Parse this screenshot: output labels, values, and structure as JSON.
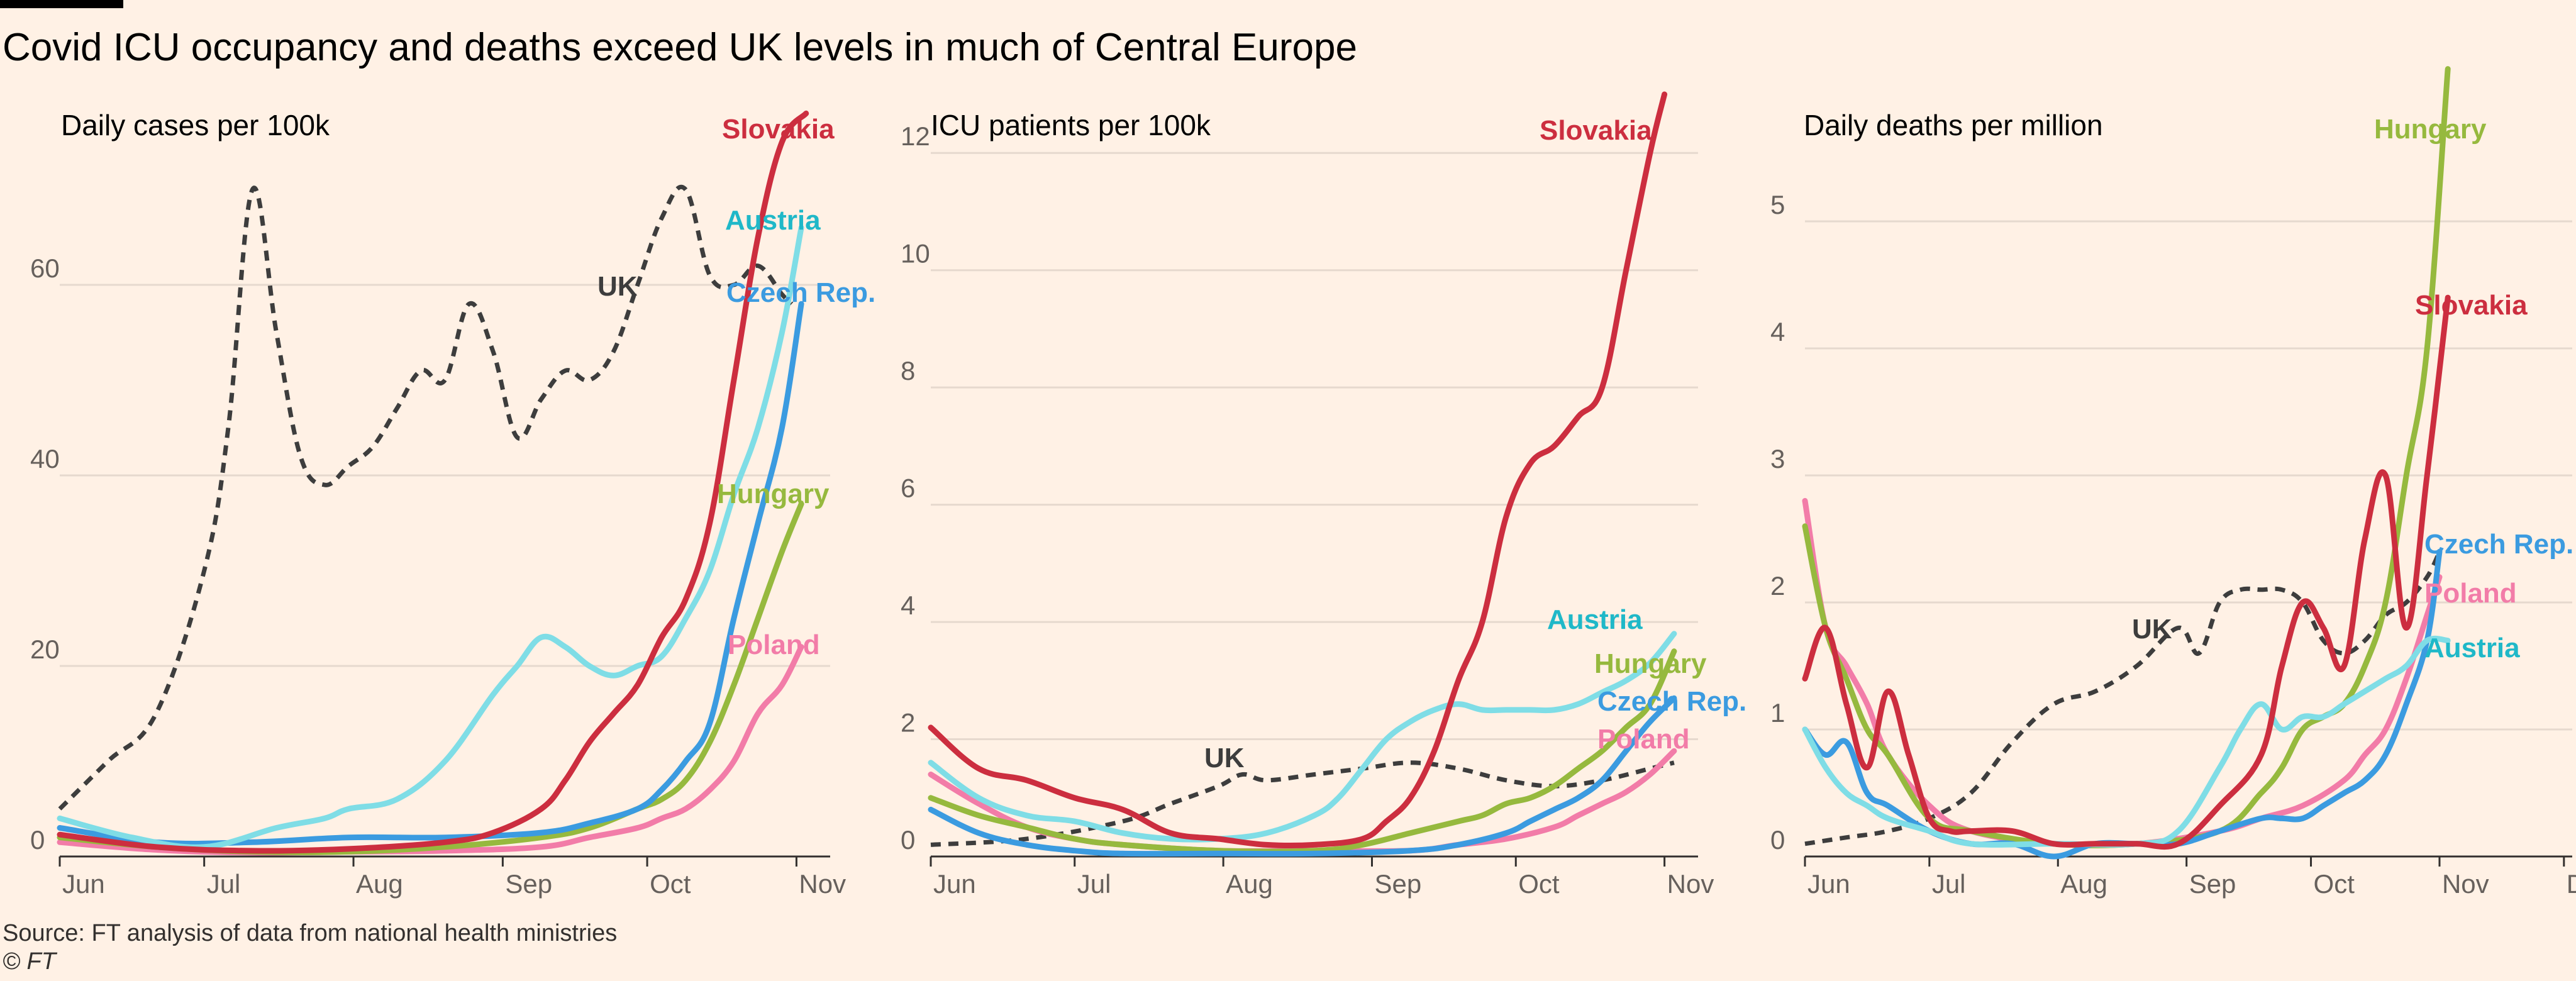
{
  "title": "Covid ICU occupancy and deaths exceed UK levels in much of Central Europe",
  "source": "Source: FT analysis of data from national health ministries",
  "copyright": "© FT",
  "colors": {
    "background": "#fff1e5",
    "grid": "#e6d9ce",
    "axis": "#33302e",
    "tick_text": "#66605c",
    "Slovakia": "#cc2e3f",
    "Austria": "#7fdde6",
    "Austria_label": "#1fb8c8",
    "Czech Rep.": "#3b9be0",
    "Hungary": "#96b93e",
    "Poland": "#f27ca8",
    "UK": "#3d3d3d"
  },
  "chart_data": [
    {
      "type": "line",
      "title": "Daily cases per 100k",
      "xlabel": "",
      "ylabel": "",
      "xlim": [
        0,
        160
      ],
      "ylim": [
        0,
        80
      ],
      "yticks": [
        0,
        20,
        40,
        60
      ],
      "ytick_labels": [
        "0",
        "20",
        "40",
        "60"
      ],
      "xticks": [
        0,
        30,
        61,
        92,
        122,
        153
      ],
      "xtick_labels": [
        "Jun",
        "Jul",
        "Aug",
        "Sep",
        "Oct",
        "Nov"
      ],
      "series": [
        {
          "name": "UK",
          "dashed": true,
          "x": [
            0,
            10,
            20,
            30,
            35,
            40,
            45,
            50,
            55,
            60,
            65,
            70,
            75,
            80,
            85,
            90,
            95,
            100,
            105,
            110,
            115,
            120,
            125,
            130,
            135,
            140,
            145,
            150,
            152
          ],
          "y": [
            5,
            10,
            15,
            30,
            45,
            70,
            55,
            42,
            39,
            41,
            43,
            47,
            51,
            50,
            58,
            53,
            44,
            48,
            51,
            50,
            53,
            60,
            67,
            70,
            61,
            60,
            62,
            59,
            58
          ]
        },
        {
          "name": "Slovakia",
          "x": [
            0,
            20,
            40,
            60,
            80,
            90,
            100,
            105,
            110,
            115,
            120,
            125,
            130,
            135,
            140,
            145,
            150,
            155
          ],
          "y": [
            2.3,
            1,
            0.6,
            0.8,
            1.5,
            2.5,
            5,
            8,
            12,
            15,
            18,
            23,
            27,
            35,
            50,
            65,
            75,
            78
          ]
        },
        {
          "name": "Austria",
          "x": [
            0,
            15,
            30,
            45,
            55,
            60,
            70,
            80,
            90,
            95,
            100,
            105,
            110,
            115,
            120,
            125,
            130,
            135,
            140,
            145,
            150,
            154
          ],
          "y": [
            4,
            2,
            1,
            3,
            4,
            5,
            6,
            10,
            17,
            20,
            23,
            22,
            20,
            19,
            20,
            21,
            25,
            30,
            38,
            45,
            55,
            66
          ]
        },
        {
          "name": "Czech Rep.",
          "x": [
            0,
            20,
            40,
            60,
            80,
            100,
            110,
            120,
            125,
            130,
            135,
            140,
            145,
            150,
            154
          ],
          "y": [
            3,
            1.5,
            1.5,
            2,
            2,
            2.5,
            3.5,
            5,
            7,
            10,
            14,
            25,
            35,
            45,
            58
          ]
        },
        {
          "name": "Hungary",
          "x": [
            0,
            20,
            40,
            60,
            80,
            100,
            110,
            120,
            125,
            130,
            135,
            140,
            145,
            150,
            154
          ],
          "y": [
            2,
            1,
            0.5,
            0.5,
            1,
            2,
            3,
            5,
            6,
            8,
            12,
            18,
            25,
            32,
            37
          ]
        },
        {
          "name": "Poland",
          "x": [
            0,
            20,
            40,
            60,
            80,
            100,
            110,
            120,
            125,
            130,
            135,
            140,
            145,
            150,
            154
          ],
          "y": [
            1.5,
            0.7,
            0.4,
            0.5,
            0.6,
            1,
            2,
            3,
            4,
            5,
            7,
            10,
            15,
            18,
            22
          ]
        }
      ],
      "labels": [
        {
          "text": "Slovakia",
          "series": "Slovakia"
        },
        {
          "text": "Austria",
          "series": "Austria"
        },
        {
          "text": "UK",
          "series": "UK"
        },
        {
          "text": "Czech Rep.",
          "series": "Czech Rep."
        },
        {
          "text": "Hungary",
          "series": "Hungary"
        },
        {
          "text": "Poland",
          "series": "Poland"
        }
      ]
    },
    {
      "type": "line",
      "title": "ICU patients per 100k",
      "xlabel": "",
      "ylabel": "",
      "xlim": [
        0,
        160
      ],
      "ylim": [
        0,
        13
      ],
      "yticks": [
        0,
        2,
        4,
        6,
        8,
        10,
        12
      ],
      "ytick_labels": [
        "0",
        "2",
        "4",
        "6",
        "8",
        "10",
        "12"
      ],
      "xticks": [
        0,
        30,
        61,
        92,
        122,
        153
      ],
      "xtick_labels": [
        "Jun",
        "Jul",
        "Aug",
        "Sep",
        "Oct",
        "Nov"
      ],
      "series": [
        {
          "name": "UK",
          "dashed": true,
          "x": [
            0,
            20,
            40,
            50,
            60,
            65,
            70,
            80,
            90,
            100,
            110,
            120,
            130,
            140,
            150,
            155
          ],
          "y": [
            0.2,
            0.3,
            0.6,
            0.9,
            1.2,
            1.4,
            1.3,
            1.4,
            1.5,
            1.6,
            1.5,
            1.3,
            1.2,
            1.3,
            1.5,
            1.6
          ]
        },
        {
          "name": "Slovakia",
          "x": [
            0,
            10,
            20,
            30,
            40,
            50,
            60,
            70,
            80,
            90,
            95,
            100,
            105,
            110,
            115,
            120,
            125,
            130,
            135,
            140,
            145,
            150,
            153
          ],
          "y": [
            2.2,
            1.5,
            1.3,
            1,
            0.8,
            0.4,
            0.3,
            0.2,
            0.2,
            0.3,
            0.6,
            1,
            1.8,
            3,
            4,
            5.8,
            6.7,
            7,
            7.5,
            8,
            10,
            12,
            13
          ]
        },
        {
          "name": "Austria",
          "x": [
            0,
            10,
            20,
            30,
            40,
            50,
            60,
            70,
            80,
            85,
            90,
            95,
            100,
            105,
            110,
            115,
            120,
            125,
            130,
            135,
            140,
            145,
            150,
            155
          ],
          "y": [
            1.6,
            1,
            0.7,
            0.6,
            0.4,
            0.3,
            0.3,
            0.4,
            0.7,
            1,
            1.5,
            2,
            2.3,
            2.5,
            2.6,
            2.5,
            2.5,
            2.5,
            2.5,
            2.6,
            2.8,
            3,
            3.3,
            3.8
          ]
        },
        {
          "name": "Czech Rep.",
          "x": [
            0,
            10,
            20,
            30,
            40,
            60,
            80,
            100,
            110,
            120,
            125,
            130,
            135,
            140,
            145,
            150,
            155
          ],
          "y": [
            0.8,
            0.4,
            0.2,
            0.1,
            0.05,
            0.05,
            0.05,
            0.1,
            0.2,
            0.4,
            0.6,
            0.8,
            1,
            1.3,
            1.8,
            2.3,
            2.7
          ]
        },
        {
          "name": "Hungary",
          "x": [
            0,
            10,
            20,
            30,
            40,
            60,
            80,
            90,
            100,
            110,
            115,
            120,
            125,
            130,
            135,
            140,
            145,
            150,
            155
          ],
          "y": [
            1,
            0.7,
            0.5,
            0.3,
            0.2,
            0.1,
            0.1,
            0.2,
            0.4,
            0.6,
            0.7,
            0.9,
            1,
            1.2,
            1.5,
            1.8,
            2.2,
            2.6,
            3.5
          ]
        },
        {
          "name": "Poland",
          "x": [
            0,
            10,
            20,
            30,
            40,
            60,
            80,
            100,
            110,
            120,
            130,
            135,
            140,
            145,
            150,
            155
          ],
          "y": [
            1.4,
            0.9,
            0.5,
            0.3,
            0.2,
            0.1,
            0.1,
            0.1,
            0.2,
            0.3,
            0.5,
            0.7,
            0.9,
            1.1,
            1.4,
            1.8
          ]
        }
      ],
      "labels": [
        {
          "text": "Slovakia",
          "series": "Slovakia"
        },
        {
          "text": "Austria",
          "series": "Austria"
        },
        {
          "text": "Hungary",
          "series": "Hungary"
        },
        {
          "text": "Czech Rep.",
          "series": "Czech Rep."
        },
        {
          "text": "Poland",
          "series": "Poland"
        },
        {
          "text": "UK",
          "series": "UK"
        }
      ]
    },
    {
      "type": "line",
      "title": "Daily deaths per million",
      "xlabel": "",
      "ylabel": "",
      "xlim": [
        0,
        185
      ],
      "ylim": [
        0,
        6
      ],
      "yticks": [
        0,
        1,
        2,
        3,
        4,
        5
      ],
      "ytick_labels": [
        "0",
        "1",
        "2",
        "3",
        "4",
        "5"
      ],
      "xticks": [
        0,
        30,
        61,
        92,
        122,
        153,
        183
      ],
      "xtick_labels": [
        "Jun",
        "Jul",
        "Aug",
        "Sep",
        "Oct",
        "Nov",
        "Dec"
      ],
      "series": [
        {
          "name": "UK",
          "dashed": true,
          "x": [
            0,
            10,
            20,
            30,
            40,
            50,
            60,
            70,
            80,
            90,
            95,
            100,
            105,
            110,
            115,
            120,
            125,
            130,
            135,
            140,
            145,
            150,
            153
          ],
          "y": [
            0.1,
            0.15,
            0.2,
            0.3,
            0.5,
            0.9,
            1.2,
            1.3,
            1.5,
            1.8,
            1.6,
            2.0,
            2.1,
            2.1,
            2.1,
            2.0,
            1.7,
            1.6,
            1.7,
            1.9,
            2.0,
            2.2,
            2.4
          ]
        },
        {
          "name": "Slovakia",
          "x": [
            0,
            5,
            10,
            15,
            20,
            25,
            30,
            35,
            40,
            50,
            60,
            70,
            80,
            90,
            100,
            110,
            115,
            120,
            125,
            130,
            135,
            140,
            145,
            150,
            155
          ],
          "y": [
            1.4,
            1.8,
            1.2,
            0.7,
            1.3,
            0.8,
            0.3,
            0.2,
            0.2,
            0.2,
            0.1,
            0.1,
            0.1,
            0.1,
            0.4,
            0.8,
            1.5,
            2.0,
            1.8,
            1.5,
            2.5,
            3.0,
            1.8,
            3.0,
            4.4
          ]
        },
        {
          "name": "Hungary",
          "x": [
            0,
            5,
            10,
            15,
            20,
            30,
            40,
            60,
            80,
            100,
            110,
            115,
            120,
            125,
            130,
            135,
            140,
            145,
            150,
            155
          ],
          "y": [
            2.6,
            1.8,
            1.4,
            1.0,
            0.8,
            0.3,
            0.2,
            0.1,
            0.1,
            0.2,
            0.5,
            0.7,
            1.0,
            1.1,
            1.2,
            1.5,
            2.0,
            3.0,
            4.0,
            6.2
          ]
        },
        {
          "name": "Czech Rep.",
          "x": [
            0,
            5,
            10,
            15,
            20,
            30,
            40,
            50,
            60,
            70,
            80,
            90,
            100,
            110,
            115,
            120,
            125,
            130,
            135,
            140,
            145,
            150,
            153
          ],
          "y": [
            1.0,
            0.8,
            0.9,
            0.5,
            0.4,
            0.2,
            0.1,
            0.1,
            0.0,
            0.1,
            0.1,
            0.1,
            0.2,
            0.3,
            0.3,
            0.3,
            0.4,
            0.5,
            0.6,
            0.8,
            1.2,
            1.7,
            2.4
          ]
        },
        {
          "name": "Poland",
          "x": [
            0,
            5,
            10,
            15,
            20,
            30,
            40,
            60,
            80,
            100,
            110,
            120,
            130,
            135,
            140,
            145,
            150,
            153
          ],
          "y": [
            2.8,
            1.8,
            1.5,
            1.2,
            0.8,
            0.4,
            0.2,
            0.1,
            0.1,
            0.2,
            0.3,
            0.4,
            0.6,
            0.8,
            1.0,
            1.4,
            1.9,
            2.2
          ]
        },
        {
          "name": "Austria",
          "x": [
            0,
            5,
            10,
            15,
            20,
            30,
            40,
            60,
            80,
            90,
            100,
            105,
            110,
            115,
            120,
            125,
            130,
            135,
            140,
            145,
            150,
            155
          ],
          "y": [
            1.0,
            0.7,
            0.5,
            0.4,
            0.3,
            0.2,
            0.1,
            0.1,
            0.1,
            0.2,
            0.7,
            1.0,
            1.2,
            1.0,
            1.1,
            1.1,
            1.2,
            1.3,
            1.4,
            1.5,
            1.7,
            1.7
          ]
        }
      ],
      "labels": [
        {
          "text": "Hungary",
          "series": "Hungary"
        },
        {
          "text": "Slovakia",
          "series": "Slovakia"
        },
        {
          "text": "Czech Rep.",
          "series": "Czech Rep."
        },
        {
          "text": "Poland",
          "series": "Poland"
        },
        {
          "text": "Austria",
          "series": "Austria"
        },
        {
          "text": "UK",
          "series": "UK"
        }
      ]
    }
  ]
}
